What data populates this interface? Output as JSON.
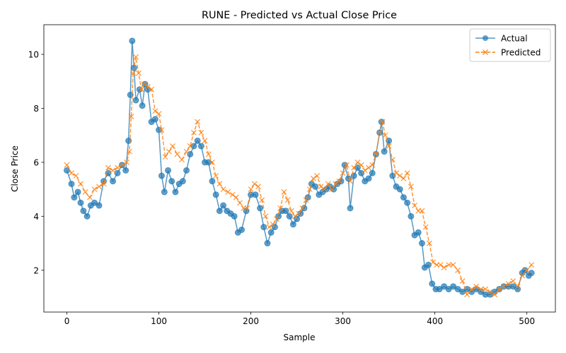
{
  "chart_data": {
    "type": "line",
    "title": "RUNE - Predicted vs Actual Close Price",
    "xlabel": "Sample",
    "ylabel": "Close Price",
    "xlim": [
      -25,
      531
    ],
    "ylim": [
      0.45,
      11.1
    ],
    "xticks": [
      0,
      100,
      200,
      300,
      400,
      500
    ],
    "yticks": [
      2,
      4,
      6,
      8,
      10
    ],
    "legend": "upper right",
    "grid": false,
    "series": [
      {
        "name": "Actual",
        "color": "#1f77b4",
        "style": "solid line with circle markers",
        "points": [
          [
            0,
            5.7
          ],
          [
            5,
            5.2
          ],
          [
            8,
            4.7
          ],
          [
            12,
            4.9
          ],
          [
            15,
            4.5
          ],
          [
            18,
            4.2
          ],
          [
            22,
            4.0
          ],
          [
            26,
            4.4
          ],
          [
            30,
            4.5
          ],
          [
            35,
            4.4
          ],
          [
            40,
            5.3
          ],
          [
            45,
            5.6
          ],
          [
            50,
            5.3
          ],
          [
            55,
            5.6
          ],
          [
            60,
            5.9
          ],
          [
            64,
            5.7
          ],
          [
            67,
            6.8
          ],
          [
            69,
            8.5
          ],
          [
            71,
            10.5
          ],
          [
            73,
            9.5
          ],
          [
            75,
            8.3
          ],
          [
            79,
            8.7
          ],
          [
            82,
            8.1
          ],
          [
            85,
            8.9
          ],
          [
            88,
            8.7
          ],
          [
            92,
            7.5
          ],
          [
            96,
            7.6
          ],
          [
            100,
            7.2
          ],
          [
            103,
            5.5
          ],
          [
            106,
            4.9
          ],
          [
            110,
            5.7
          ],
          [
            114,
            5.3
          ],
          [
            118,
            4.9
          ],
          [
            122,
            5.2
          ],
          [
            126,
            5.3
          ],
          [
            130,
            5.7
          ],
          [
            134,
            6.3
          ],
          [
            138,
            6.6
          ],
          [
            142,
            6.8
          ],
          [
            146,
            6.6
          ],
          [
            150,
            6.0
          ],
          [
            154,
            6.0
          ],
          [
            158,
            5.3
          ],
          [
            162,
            4.8
          ],
          [
            166,
            4.2
          ],
          [
            170,
            4.4
          ],
          [
            174,
            4.2
          ],
          [
            178,
            4.1
          ],
          [
            182,
            4.0
          ],
          [
            186,
            3.4
          ],
          [
            190,
            3.5
          ],
          [
            195,
            4.2
          ],
          [
            200,
            4.8
          ],
          [
            205,
            4.8
          ],
          [
            210,
            4.3
          ],
          [
            214,
            3.6
          ],
          [
            218,
            3.0
          ],
          [
            222,
            3.4
          ],
          [
            226,
            3.6
          ],
          [
            230,
            4.0
          ],
          [
            234,
            4.2
          ],
          [
            238,
            4.2
          ],
          [
            242,
            4.0
          ],
          [
            246,
            3.7
          ],
          [
            250,
            3.9
          ],
          [
            254,
            4.1
          ],
          [
            258,
            4.3
          ],
          [
            262,
            4.7
          ],
          [
            266,
            5.2
          ],
          [
            270,
            5.1
          ],
          [
            274,
            4.8
          ],
          [
            278,
            4.9
          ],
          [
            282,
            5.0
          ],
          [
            286,
            5.1
          ],
          [
            290,
            5.0
          ],
          [
            294,
            5.2
          ],
          [
            298,
            5.3
          ],
          [
            302,
            5.9
          ],
          [
            306,
            5.4
          ],
          [
            308,
            4.3
          ],
          [
            312,
            5.5
          ],
          [
            316,
            5.8
          ],
          [
            320,
            5.6
          ],
          [
            324,
            5.3
          ],
          [
            328,
            5.4
          ],
          [
            332,
            5.6
          ],
          [
            336,
            6.3
          ],
          [
            340,
            7.1
          ],
          [
            342,
            7.5
          ],
          [
            345,
            6.4
          ],
          [
            350,
            6.8
          ],
          [
            354,
            5.5
          ],
          [
            358,
            5.1
          ],
          [
            362,
            5.0
          ],
          [
            366,
            4.7
          ],
          [
            370,
            4.5
          ],
          [
            374,
            4.0
          ],
          [
            378,
            3.3
          ],
          [
            382,
            3.4
          ],
          [
            386,
            3.0
          ],
          [
            389,
            2.1
          ],
          [
            393,
            2.2
          ],
          [
            397,
            1.5
          ],
          [
            401,
            1.3
          ],
          [
            405,
            1.3
          ],
          [
            410,
            1.4
          ],
          [
            415,
            1.3
          ],
          [
            420,
            1.4
          ],
          [
            425,
            1.3
          ],
          [
            430,
            1.2
          ],
          [
            435,
            1.3
          ],
          [
            440,
            1.2
          ],
          [
            445,
            1.3
          ],
          [
            450,
            1.2
          ],
          [
            455,
            1.1
          ],
          [
            460,
            1.1
          ],
          [
            465,
            1.2
          ],
          [
            470,
            1.3
          ],
          [
            475,
            1.4
          ],
          [
            480,
            1.4
          ],
          [
            485,
            1.4
          ],
          [
            490,
            1.3
          ],
          [
            495,
            1.9
          ],
          [
            498,
            2.0
          ],
          [
            502,
            1.8
          ],
          [
            505,
            1.9
          ]
        ]
      },
      {
        "name": "Predicted",
        "color": "#ff7f0e",
        "style": "dashed line with x markers",
        "points": [
          [
            0,
            5.9
          ],
          [
            5,
            5.6
          ],
          [
            10,
            5.5
          ],
          [
            15,
            5.2
          ],
          [
            20,
            4.9
          ],
          [
            25,
            4.7
          ],
          [
            30,
            5.0
          ],
          [
            35,
            5.1
          ],
          [
            40,
            5.2
          ],
          [
            45,
            5.8
          ],
          [
            50,
            5.7
          ],
          [
            55,
            5.8
          ],
          [
            60,
            5.9
          ],
          [
            65,
            6.0
          ],
          [
            68,
            6.4
          ],
          [
            70,
            7.7
          ],
          [
            72,
            9.3
          ],
          [
            75,
            9.9
          ],
          [
            78,
            9.3
          ],
          [
            81,
            8.7
          ],
          [
            84,
            8.9
          ],
          [
            88,
            8.8
          ],
          [
            92,
            8.7
          ],
          [
            96,
            7.9
          ],
          [
            100,
            7.8
          ],
          [
            103,
            7.2
          ],
          [
            107,
            6.2
          ],
          [
            111,
            6.4
          ],
          [
            115,
            6.6
          ],
          [
            120,
            6.3
          ],
          [
            125,
            6.1
          ],
          [
            130,
            6.4
          ],
          [
            134,
            6.6
          ],
          [
            138,
            7.1
          ],
          [
            142,
            7.5
          ],
          [
            146,
            7.1
          ],
          [
            150,
            6.8
          ],
          [
            154,
            6.3
          ],
          [
            158,
            6.0
          ],
          [
            162,
            5.5
          ],
          [
            166,
            5.2
          ],
          [
            170,
            5.0
          ],
          [
            175,
            4.9
          ],
          [
            180,
            4.8
          ],
          [
            184,
            4.7
          ],
          [
            188,
            4.5
          ],
          [
            192,
            4.3
          ],
          [
            196,
            4.3
          ],
          [
            200,
            5.0
          ],
          [
            204,
            5.2
          ],
          [
            208,
            5.1
          ],
          [
            212,
            4.6
          ],
          [
            216,
            4.0
          ],
          [
            220,
            3.6
          ],
          [
            224,
            3.7
          ],
          [
            228,
            3.9
          ],
          [
            232,
            4.3
          ],
          [
            236,
            4.9
          ],
          [
            240,
            4.6
          ],
          [
            244,
            4.2
          ],
          [
            248,
            4.0
          ],
          [
            252,
            4.1
          ],
          [
            256,
            4.3
          ],
          [
            260,
            4.6
          ],
          [
            264,
            5.0
          ],
          [
            268,
            5.4
          ],
          [
            272,
            5.5
          ],
          [
            276,
            5.1
          ],
          [
            280,
            5.0
          ],
          [
            284,
            5.2
          ],
          [
            288,
            5.0
          ],
          [
            292,
            5.2
          ],
          [
            296,
            5.3
          ],
          [
            300,
            5.6
          ],
          [
            304,
            5.9
          ],
          [
            308,
            5.3
          ],
          [
            312,
            5.8
          ],
          [
            316,
            6.0
          ],
          [
            320,
            5.9
          ],
          [
            324,
            5.7
          ],
          [
            328,
            5.8
          ],
          [
            332,
            5.9
          ],
          [
            336,
            6.3
          ],
          [
            340,
            7.1
          ],
          [
            343,
            7.5
          ],
          [
            346,
            7.0
          ],
          [
            350,
            6.6
          ],
          [
            354,
            6.1
          ],
          [
            358,
            5.6
          ],
          [
            362,
            5.5
          ],
          [
            366,
            5.4
          ],
          [
            370,
            5.6
          ],
          [
            374,
            5.1
          ],
          [
            378,
            4.4
          ],
          [
            382,
            4.2
          ],
          [
            386,
            4.2
          ],
          [
            390,
            3.6
          ],
          [
            394,
            3.0
          ],
          [
            398,
            2.3
          ],
          [
            402,
            2.2
          ],
          [
            406,
            2.2
          ],
          [
            410,
            2.1
          ],
          [
            415,
            2.2
          ],
          [
            420,
            2.2
          ],
          [
            425,
            2.0
          ],
          [
            430,
            1.6
          ],
          [
            435,
            1.1
          ],
          [
            440,
            1.3
          ],
          [
            445,
            1.4
          ],
          [
            450,
            1.3
          ],
          [
            455,
            1.3
          ],
          [
            460,
            1.2
          ],
          [
            465,
            1.1
          ],
          [
            470,
            1.3
          ],
          [
            475,
            1.4
          ],
          [
            480,
            1.5
          ],
          [
            485,
            1.6
          ],
          [
            490,
            1.4
          ],
          [
            495,
            1.8
          ],
          [
            500,
            2.0
          ],
          [
            505,
            2.2
          ]
        ]
      }
    ]
  }
}
